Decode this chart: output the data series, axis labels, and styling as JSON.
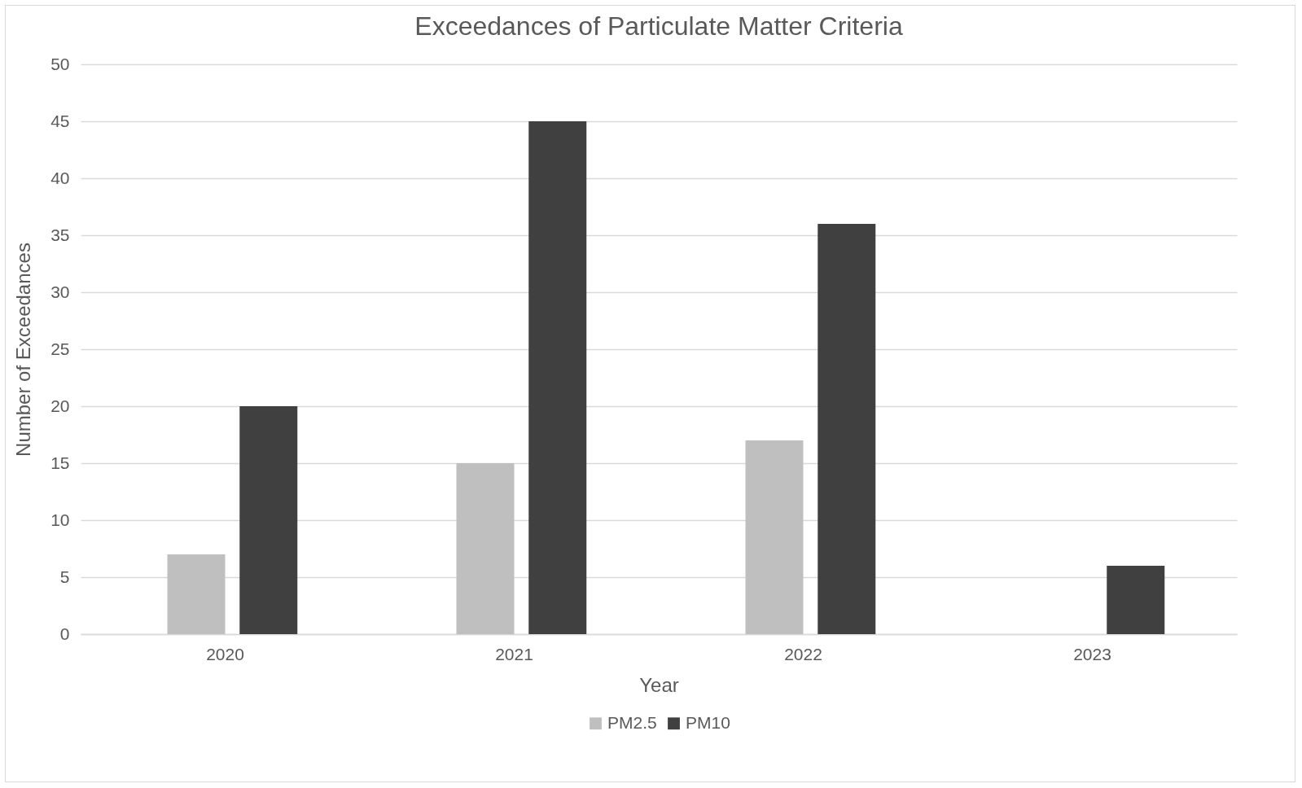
{
  "chart_data": {
    "type": "bar",
    "title": "Exceedances of Particulate Matter Criteria",
    "xlabel": "Year",
    "ylabel": "Number of Exceedances",
    "categories": [
      "2020",
      "2021",
      "2022",
      "2023"
    ],
    "series": [
      {
        "name": "PM2.5",
        "color": "#bfbfbf",
        "values": [
          7,
          15,
          17,
          0
        ]
      },
      {
        "name": "PM10",
        "color": "#404040",
        "values": [
          20,
          45,
          36,
          6
        ]
      }
    ],
    "ylim": [
      0,
      50
    ],
    "yticks": [
      0,
      5,
      10,
      15,
      20,
      25,
      30,
      35,
      40,
      45,
      50
    ],
    "grid": "y",
    "legend": "bottom"
  }
}
